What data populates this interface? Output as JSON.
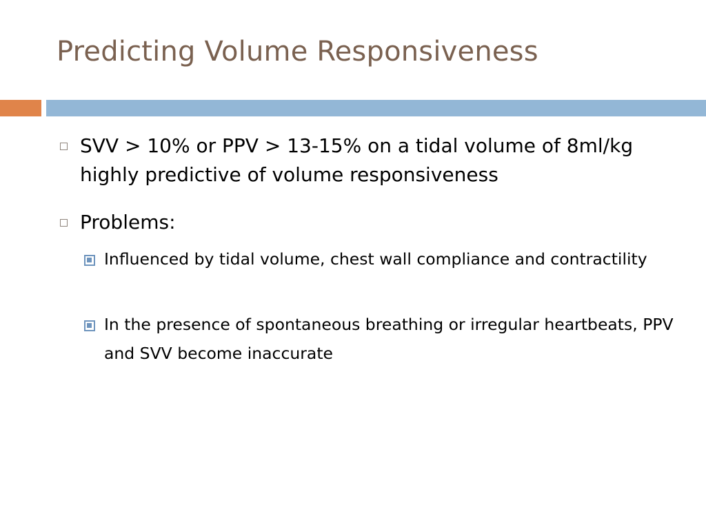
{
  "slide": {
    "title": "Predicting Volume Responsiveness",
    "bullets": [
      {
        "text": "SVV > 10% or PPV > 13-15% on a tidal volume of 8ml/kg highly predictive of volume responsiveness"
      },
      {
        "text": "Problems:",
        "subbullets": [
          {
            "text": "Influenced by tidal volume, chest wall compliance and contractility"
          },
          {
            "text": "In the presence of spontaneous breathing or irregular heartbeats, PPV and SVV become inaccurate"
          }
        ]
      }
    ]
  },
  "colors": {
    "title": "#7a6150",
    "accent_orange": "#e0844a",
    "accent_blue": "#93b7d6",
    "subbullet_blue": "#6e94bd"
  }
}
